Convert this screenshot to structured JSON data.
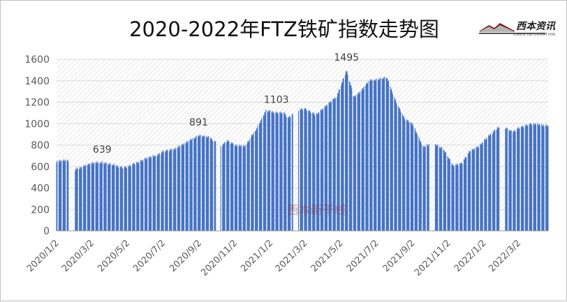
{
  "chart_data": {
    "type": "bar",
    "title": "2020-2022年FTZ铁矿指数走势图",
    "xlabel": "",
    "ylabel": "",
    "ylim": [
      0,
      1600
    ],
    "y_ticks": [
      "0",
      "200",
      "400",
      "600",
      "800",
      "1000",
      "1200",
      "1400",
      "1600"
    ],
    "x_tick_labels": [
      "2020/1/2",
      "2020/3/2",
      "2020/5/2",
      "2020/7/2",
      "2020/9/2",
      "2020/11/2",
      "2021/1/2",
      "2021/3/2",
      "2021/5/2",
      "2021/7/2",
      "2021/9/2",
      "2021/11/2",
      "2022/1/2",
      "2022/3/2"
    ],
    "annotations": [
      {
        "label": "639",
        "date": "2020-03-20",
        "value": 639
      },
      {
        "label": "891",
        "date": "2020-09-01",
        "value": 891
      },
      {
        "label": "1103",
        "date": "2021-01-12",
        "value": 1103
      },
      {
        "label": "1495",
        "date": "2021-05-12",
        "value": 1495
      }
    ],
    "series": [
      {
        "color": "#4472c4",
        "anchors": [
          [
            "2020-01-02",
            650
          ],
          [
            "2020-01-20",
            660
          ],
          [
            "2020-02-03",
            570
          ],
          [
            "2020-02-20",
            610
          ],
          [
            "2020-03-02",
            630
          ],
          [
            "2020-03-20",
            639
          ],
          [
            "2020-04-10",
            610
          ],
          [
            "2020-04-25",
            590
          ],
          [
            "2020-05-04",
            600
          ],
          [
            "2020-05-20",
            640
          ],
          [
            "2020-06-05",
            680
          ],
          [
            "2020-06-20",
            700
          ],
          [
            "2020-07-02",
            740
          ],
          [
            "2020-07-20",
            760
          ],
          [
            "2020-08-10",
            820
          ],
          [
            "2020-09-01",
            891
          ],
          [
            "2020-09-20",
            870
          ],
          [
            "2020-10-09",
            790
          ],
          [
            "2020-10-20",
            840
          ],
          [
            "2020-11-02",
            800
          ],
          [
            "2020-11-20",
            790
          ],
          [
            "2020-12-10",
            960
          ],
          [
            "2020-12-25",
            1120
          ],
          [
            "2021-01-12",
            1103
          ],
          [
            "2021-01-25",
            1100
          ],
          [
            "2021-02-01",
            1050
          ],
          [
            "2021-02-18",
            1130
          ],
          [
            "2021-03-02",
            1140
          ],
          [
            "2021-03-20",
            1080
          ],
          [
            "2021-04-10",
            1180
          ],
          [
            "2021-04-25",
            1250
          ],
          [
            "2021-05-12",
            1495
          ],
          [
            "2021-05-25",
            1250
          ],
          [
            "2021-06-05",
            1300
          ],
          [
            "2021-06-20",
            1400
          ],
          [
            "2021-07-02",
            1410
          ],
          [
            "2021-07-20",
            1430
          ],
          [
            "2021-08-05",
            1200
          ],
          [
            "2021-08-20",
            1040
          ],
          [
            "2021-09-02",
            1000
          ],
          [
            "2021-09-20",
            780
          ],
          [
            "2021-10-08",
            820
          ],
          [
            "2021-10-25",
            760
          ],
          [
            "2021-11-10",
            610
          ],
          [
            "2021-11-25",
            630
          ],
          [
            "2021-12-10",
            750
          ],
          [
            "2021-12-25",
            790
          ],
          [
            "2022-01-04",
            850
          ],
          [
            "2022-01-25",
            960
          ],
          [
            "2022-02-08",
            960
          ],
          [
            "2022-02-20",
            920
          ],
          [
            "2022-03-02",
            960
          ],
          [
            "2022-03-20",
            990
          ],
          [
            "2022-04-01",
            1000
          ],
          [
            "2022-04-15",
            980
          ]
        ]
      }
    ]
  },
  "watermark": "西本新干线",
  "logo": {
    "name": "西本资讯",
    "sub": "XIBEN INFORMATION"
  }
}
